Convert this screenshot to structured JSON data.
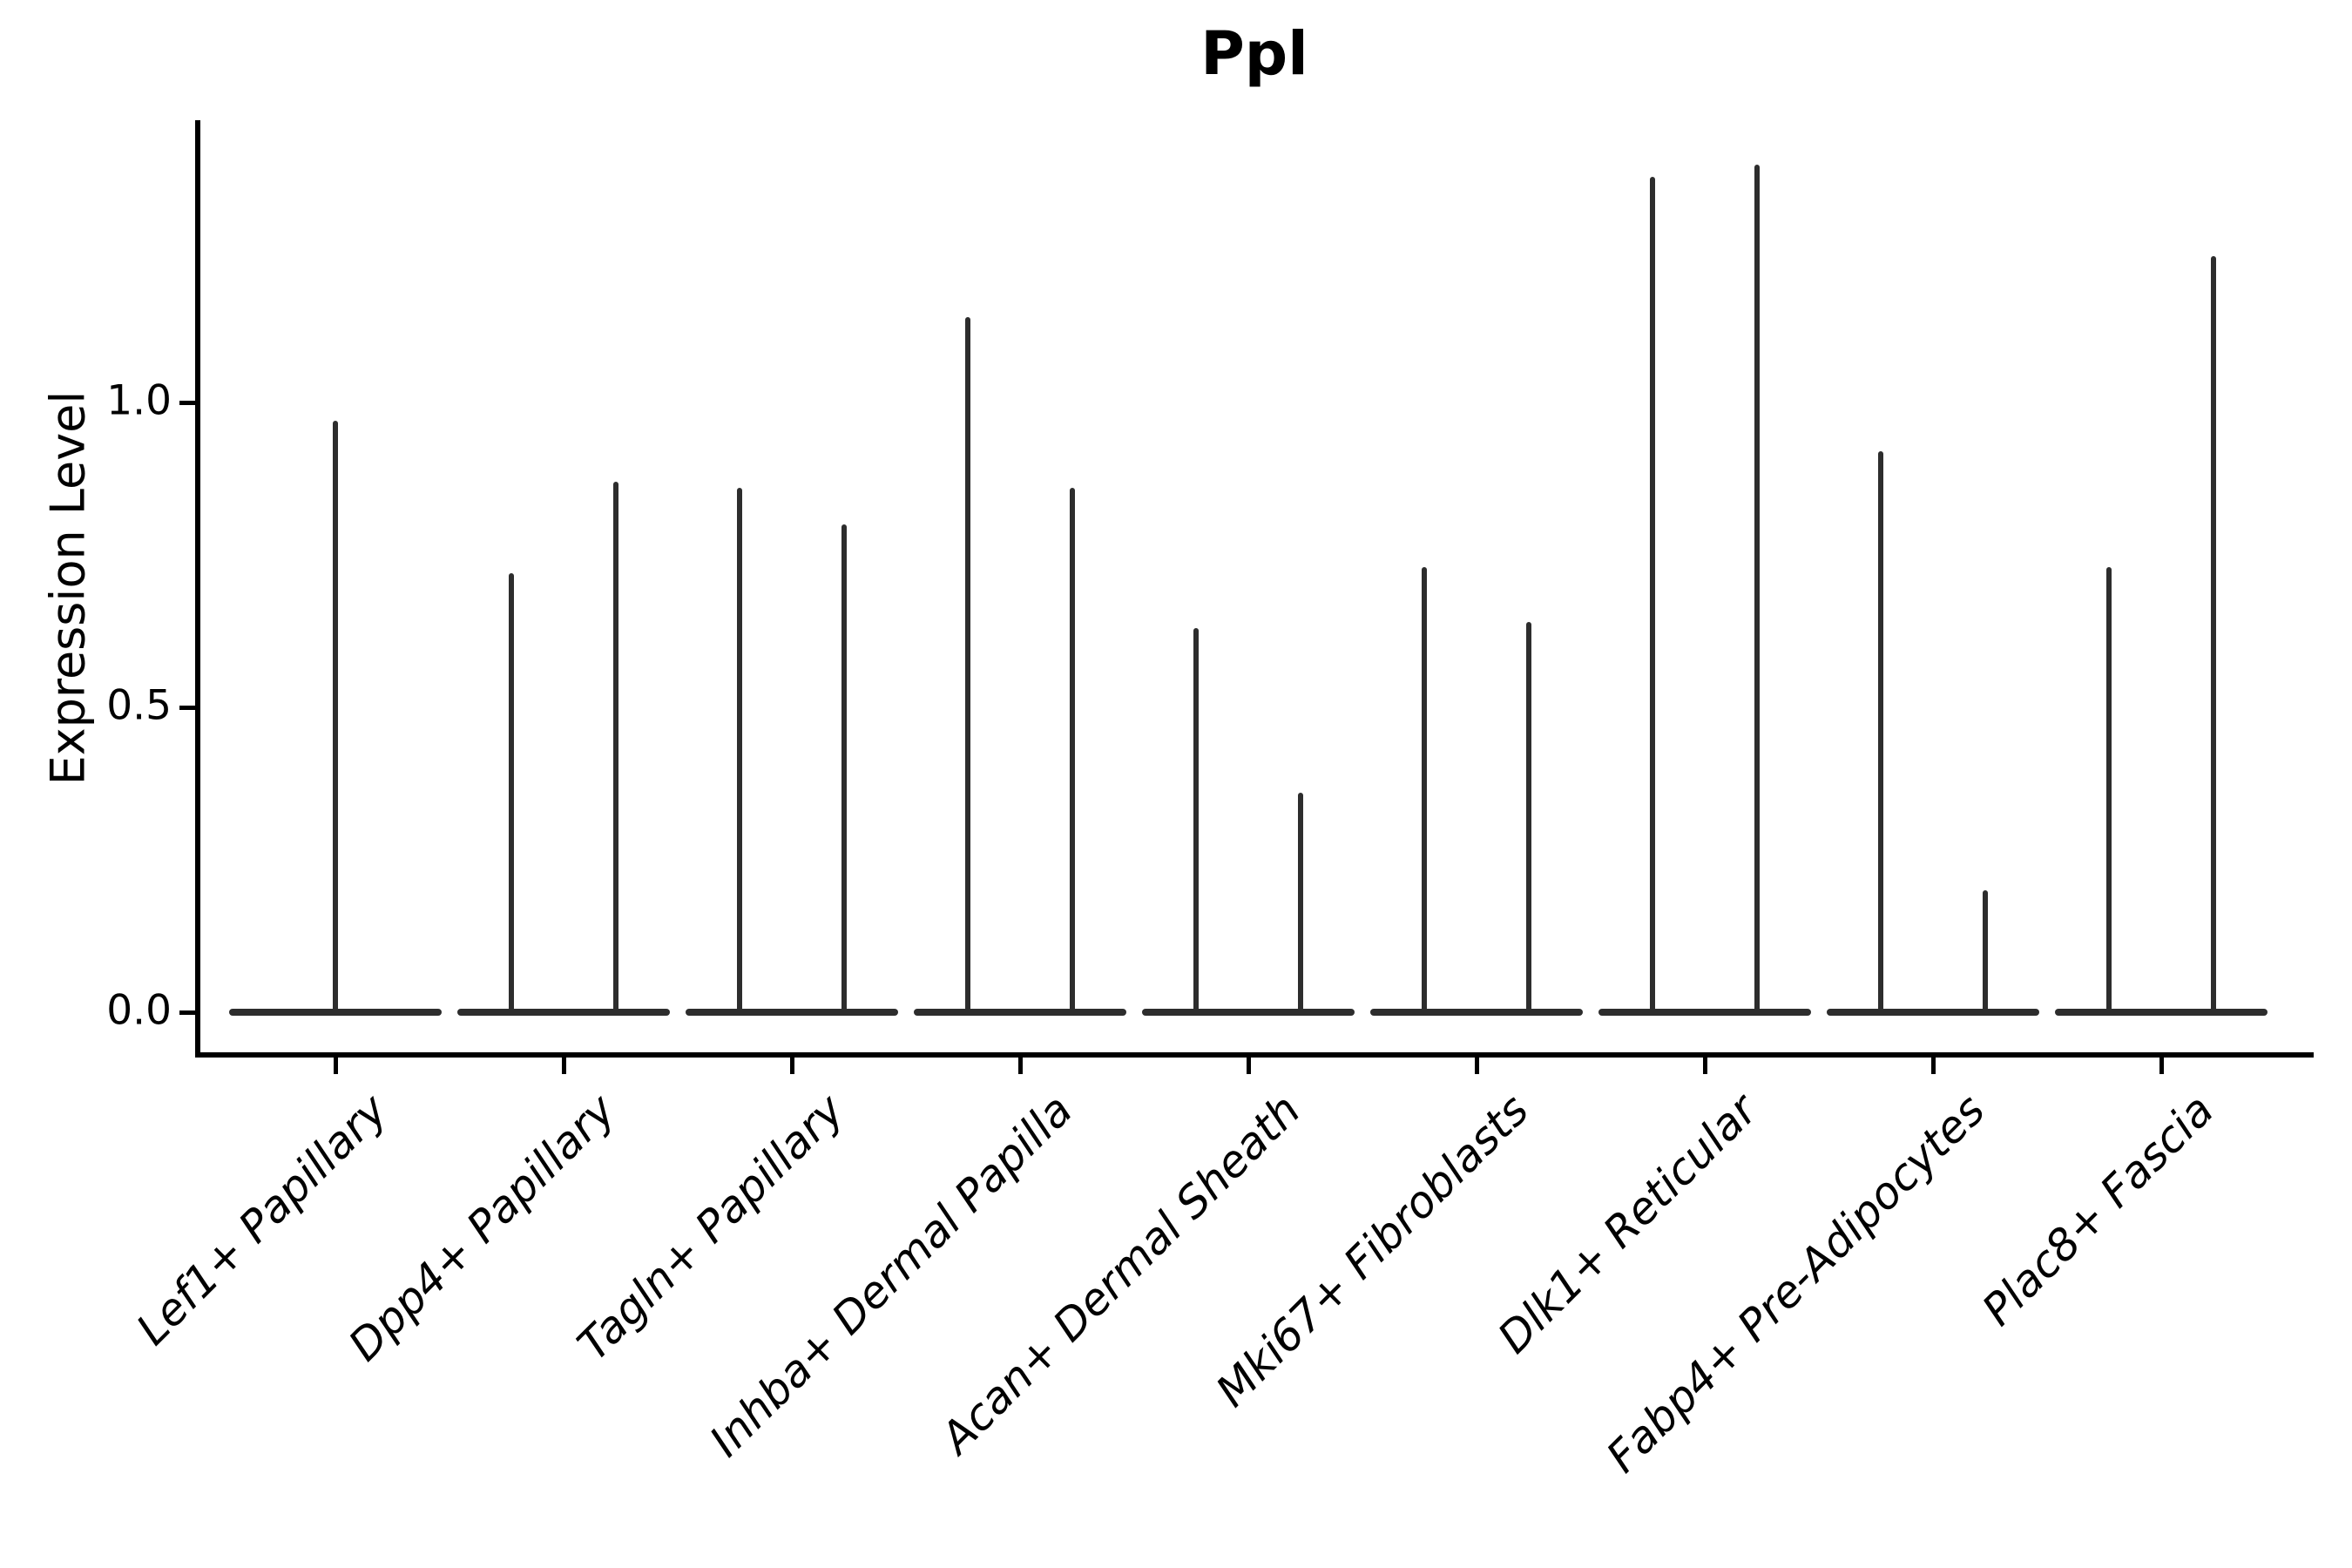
{
  "figure": {
    "title": "Ppl"
  },
  "chart_data": {
    "type": "violin",
    "title": "Ppl",
    "xlabel": "",
    "ylabel": "Expression Level",
    "ylim": [
      -0.07,
      1.46
    ],
    "yticks": [
      {
        "value": 0.0,
        "label": "0.0"
      },
      {
        "value": 0.5,
        "label": "0.5"
      },
      {
        "value": 1.0,
        "label": "1.0"
      }
    ],
    "grid": false,
    "legend": "none",
    "line_color": "#2d2d2d",
    "axis_color": "#000000",
    "categories": [
      "Lef1+ Papillary",
      "Dpp4+ Papillary",
      "Tagln+ Papillary",
      "Inhba+ Dermal Papilla",
      "Acan+ Dermal Sheath",
      "Mki67+ Fibroblasts",
      "Dlk1+ Reticular",
      "Fabp4+ Pre-Adipocytes",
      "Plac8+ Fascia"
    ],
    "violins": [
      {
        "category": "Lef1+ Papillary",
        "spikes": [
          {
            "side": "center",
            "max": 0.97
          }
        ]
      },
      {
        "category": "Dpp4+ Papillary",
        "spikes": [
          {
            "side": "left",
            "max": 0.72
          },
          {
            "side": "right",
            "max": 0.87
          }
        ]
      },
      {
        "category": "Tagln+ Papillary",
        "spikes": [
          {
            "side": "left",
            "max": 0.86
          },
          {
            "side": "right",
            "max": 0.8
          }
        ]
      },
      {
        "category": "Inhba+ Dermal Papilla",
        "spikes": [
          {
            "side": "left",
            "max": 1.14
          },
          {
            "side": "right",
            "max": 0.86
          }
        ]
      },
      {
        "category": "Acan+ Dermal Sheath",
        "spikes": [
          {
            "side": "left",
            "max": 0.63
          },
          {
            "side": "right",
            "max": 0.36
          }
        ]
      },
      {
        "category": "Mki67+ Fibroblasts",
        "spikes": [
          {
            "side": "left",
            "max": 0.73
          },
          {
            "side": "right",
            "max": 0.64
          }
        ]
      },
      {
        "category": "Dlk1+ Reticular",
        "spikes": [
          {
            "side": "left",
            "max": 1.37
          },
          {
            "side": "right",
            "max": 1.39
          }
        ]
      },
      {
        "category": "Fabp4+ Pre-Adipocytes",
        "spikes": [
          {
            "side": "left",
            "max": 0.92
          },
          {
            "side": "right",
            "max": 0.2
          }
        ]
      },
      {
        "category": "Plac8+ Fascia",
        "spikes": [
          {
            "side": "left",
            "max": 0.73
          },
          {
            "side": "right",
            "max": 1.24
          }
        ]
      }
    ],
    "values_at_zero_note": "each violin is a flat base at 0 with a thin density spike up to its max"
  }
}
